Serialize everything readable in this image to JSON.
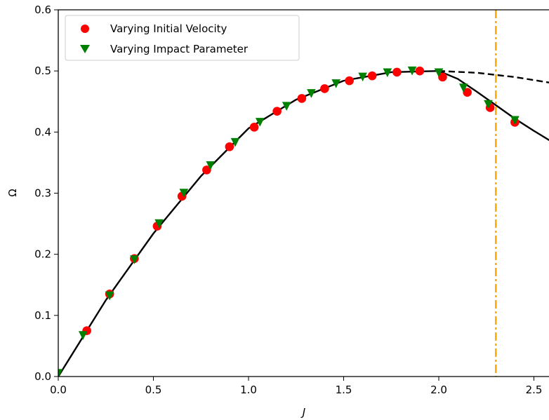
{
  "chart_data": {
    "type": "scatter",
    "xlabel": "J",
    "ylabel": "Ω",
    "xlim": [
      0.0,
      2.6
    ],
    "ylim": [
      0.0,
      0.6
    ],
    "xticks": [
      "0.0",
      "0.5",
      "1.0",
      "1.5",
      "2.0",
      "2.5"
    ],
    "yticks": [
      "0.0",
      "0.1",
      "0.2",
      "0.3",
      "0.4",
      "0.5",
      "0.6"
    ],
    "legend_position": "top-left",
    "grid": false,
    "series": [
      {
        "name": "Varying Initial Velocity",
        "marker": "circle",
        "color": "#ff0000",
        "x": [
          0.15,
          0.27,
          0.4,
          0.52,
          0.65,
          0.78,
          0.9,
          1.03,
          1.15,
          1.28,
          1.4,
          1.53,
          1.65,
          1.78,
          1.9,
          2.02,
          2.15,
          2.27,
          2.4
        ],
        "y": [
          0.075,
          0.135,
          0.193,
          0.246,
          0.295,
          0.338,
          0.376,
          0.408,
          0.434,
          0.455,
          0.471,
          0.484,
          0.492,
          0.498,
          0.5,
          0.49,
          0.465,
          0.44,
          0.416
        ]
      },
      {
        "name": "Varying Impact Parameter",
        "marker": "triangle-down",
        "color": "#008000",
        "x": [
          0.0,
          0.13,
          0.27,
          0.4,
          0.53,
          0.66,
          0.8,
          0.93,
          1.06,
          1.2,
          1.33,
          1.46,
          1.6,
          1.73,
          1.86,
          2.0,
          2.13,
          2.26,
          2.4
        ],
        "y": [
          0.005,
          0.067,
          0.132,
          0.191,
          0.25,
          0.3,
          0.345,
          0.383,
          0.416,
          0.442,
          0.463,
          0.479,
          0.49,
          0.497,
          0.5,
          0.497,
          0.472,
          0.445,
          0.419
        ]
      }
    ],
    "curves": [
      {
        "style": "solid",
        "color": "#000000",
        "x": [
          0.0,
          0.25,
          0.5,
          0.75,
          1.0,
          1.25,
          1.5,
          1.75,
          2.0,
          2.1,
          2.2,
          2.3,
          2.4,
          2.5,
          2.6
        ],
        "y": [
          0.0,
          0.125,
          0.234,
          0.328,
          0.406,
          0.453,
          0.484,
          0.498,
          0.5,
          0.487,
          0.466,
          0.444,
          0.422,
          0.402,
          0.383
        ]
      },
      {
        "style": "dashed",
        "color": "#000000",
        "x": [
          2.0,
          2.2,
          2.4,
          2.6
        ],
        "y": [
          0.5,
          0.497,
          0.49,
          0.48
        ]
      }
    ],
    "vlines": [
      {
        "x": 2.3,
        "style": "dashdot",
        "color": "#ffa500"
      }
    ]
  }
}
